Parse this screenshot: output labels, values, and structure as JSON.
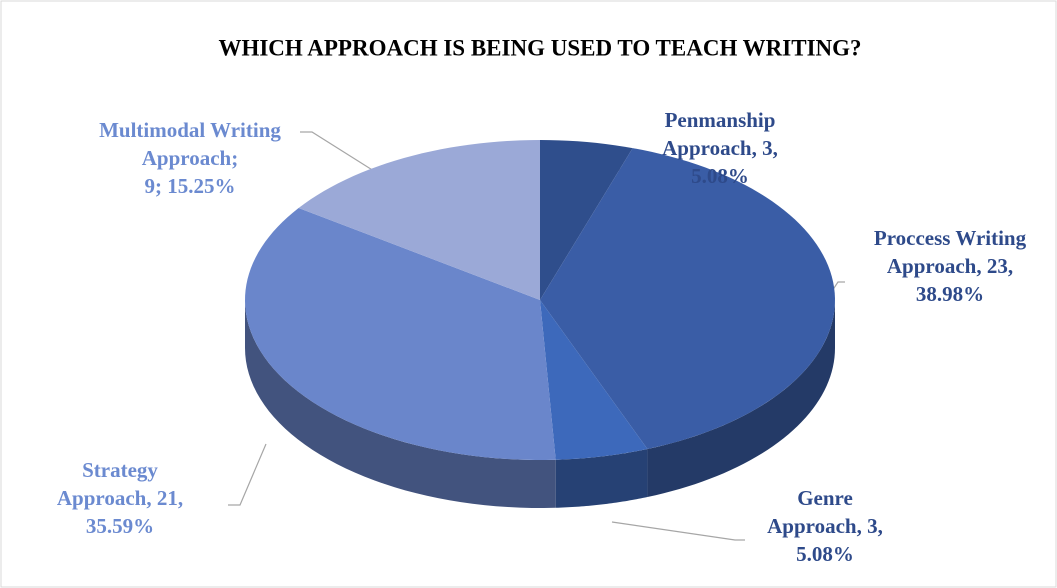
{
  "chart_data": {
    "type": "pie3d",
    "title": "WHICH APPROACH IS BEING USED TO TEACH WRITING?",
    "values": [
      3,
      23,
      3,
      21,
      9
    ],
    "value_labels": [
      [
        "Penmanship",
        "Approach, 3,",
        "5.08%"
      ],
      [
        "Proccess Writing",
        "Approach, 23,",
        "38.98%"
      ],
      [
        "Genre",
        "Approach, 3,",
        "5.08%"
      ],
      [
        "Strategy",
        "Approach, 21,",
        "35.59%"
      ],
      [
        "Multimodal Writing",
        "Approach;",
        "9; 15.25%"
      ]
    ],
    "colors": [
      "#2f4e8c",
      "#3a5da6",
      "#3d69bb",
      "#6a86cb",
      "#9ba9d7"
    ],
    "label_colors": [
      "#2e4a8a",
      "#2e4a8a",
      "#2e4a8a",
      "#6b8ad0",
      "#6b8ad0"
    ]
  }
}
